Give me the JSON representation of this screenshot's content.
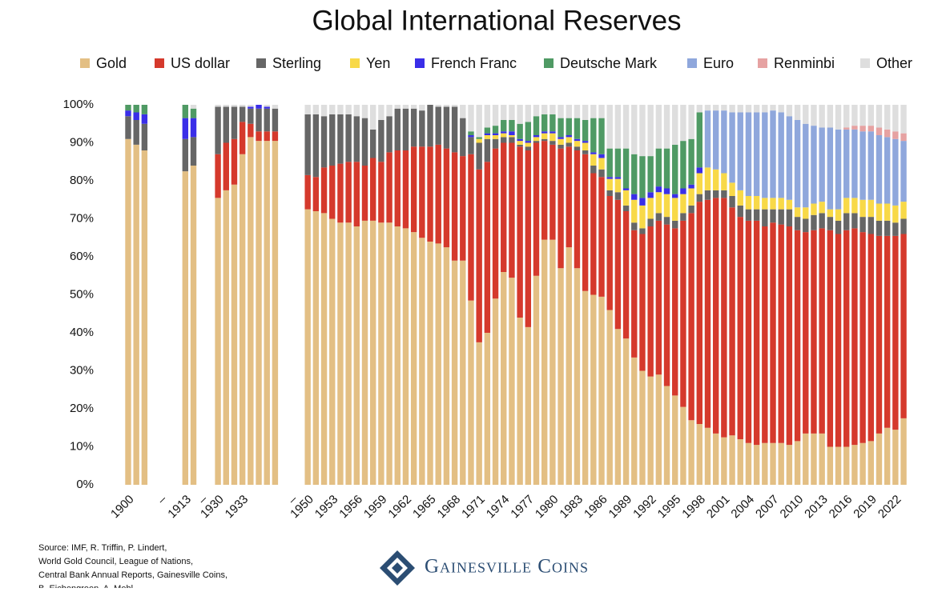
{
  "chart_data": {
    "type": "stacked_bar",
    "title": "Global International Reserves",
    "categories": [
      "1900",
      null,
      null,
      null,
      "–",
      null,
      null,
      "1913",
      null,
      "–",
      null,
      "1930",
      null,
      null,
      "1933",
      null,
      null,
      null,
      null,
      null,
      "–",
      null,
      "1950",
      null,
      null,
      "1953",
      null,
      null,
      "1956",
      null,
      null,
      "1959",
      null,
      null,
      "1962",
      null,
      null,
      "1965",
      null,
      null,
      "1968",
      null,
      null,
      "1971",
      null,
      null,
      "1974",
      null,
      null,
      "1977",
      null,
      null,
      "1980",
      null,
      null,
      "1983",
      null,
      null,
      "1986",
      null,
      null,
      "1989",
      null,
      null,
      "1992",
      null,
      null,
      "1995",
      null,
      null,
      "1998",
      null,
      null,
      "2001",
      null,
      null,
      "2004",
      null,
      null,
      "2007",
      null,
      null,
      "2010",
      null,
      null,
      "2013",
      null,
      null,
      "2016",
      null,
      null,
      "2019",
      null,
      null,
      "2022",
      null
    ],
    "series": [
      {
        "name": "Gold",
        "color": "#e3bf84",
        "values": [
          91,
          89.5,
          88,
          null,
          null,
          null,
          null,
          82.5,
          84,
          null,
          null,
          75.5,
          77.5,
          79,
          87,
          91.5,
          90.5,
          90.5,
          90.5,
          null,
          null,
          null,
          72.5,
          72,
          71.5,
          70,
          69,
          69,
          68,
          69.5,
          69.5,
          69,
          69,
          68,
          67.5,
          66.5,
          65,
          64,
          63.5,
          62.5,
          59,
          59,
          48.5,
          37.5,
          40,
          49,
          56,
          54.5,
          44,
          41.5,
          55,
          64.5,
          64.5,
          57,
          62.5,
          57,
          51,
          50,
          49.5,
          46,
          41,
          38.5,
          33.5,
          30,
          28.5,
          29,
          26,
          23.5,
          20.5,
          17,
          16,
          15,
          13.5,
          12.5,
          13,
          12,
          11,
          10.5,
          11,
          11,
          11,
          10.5,
          11.5,
          13.5,
          13.5,
          13.5,
          10,
          10,
          10,
          10.5,
          11,
          11.5,
          13.5,
          15,
          14.5,
          17.5
        ]
      },
      {
        "name": "US dollar",
        "color": "#d5392c",
        "values": [
          0,
          0,
          0,
          null,
          null,
          null,
          null,
          0,
          0,
          null,
          null,
          11.5,
          12.5,
          12,
          8.5,
          3.5,
          2.5,
          2.5,
          2.5,
          null,
          null,
          null,
          9,
          9,
          12,
          14,
          15.5,
          16,
          17,
          14.5,
          16.5,
          16,
          18.5,
          20,
          20.5,
          22.5,
          24,
          25,
          26,
          26,
          28.5,
          27.5,
          38.5,
          45.5,
          45,
          39.5,
          34,
          35.5,
          45,
          46.5,
          35,
          26,
          25,
          31.5,
          26.5,
          31,
          36,
          32,
          31.5,
          30,
          34,
          33.5,
          33.5,
          36,
          39.5,
          40.5,
          42.5,
          44,
          49,
          54.5,
          58.5,
          60,
          62,
          63,
          60,
          58.5,
          58.5,
          59,
          57,
          58,
          57.5,
          57.5,
          55.5,
          53,
          53.5,
          54,
          57,
          56,
          57,
          57,
          55.5,
          54.5,
          52,
          50.5,
          51,
          48.5
        ]
      },
      {
        "name": "Sterling",
        "color": "#666666",
        "values": [
          6,
          6.5,
          7,
          null,
          null,
          null,
          null,
          8.5,
          7.5,
          null,
          null,
          12.5,
          9.5,
          8.5,
          4,
          4,
          6,
          6,
          6,
          null,
          null,
          null,
          16,
          16.5,
          13.5,
          13.5,
          13,
          12.5,
          12,
          12.5,
          7.5,
          11,
          9.5,
          11,
          11,
          10,
          9.5,
          11,
          10,
          11,
          12,
          10,
          4.5,
          7,
          6,
          2.5,
          1.5,
          1.5,
          0.5,
          1,
          0.5,
          0.5,
          1,
          1,
          1,
          1,
          1,
          2,
          2,
          1.5,
          2,
          1.5,
          2,
          1.5,
          2,
          2,
          2,
          2,
          2,
          2,
          2,
          2.5,
          2,
          2,
          3,
          3,
          3,
          3,
          4.5,
          3.5,
          4,
          4.5,
          3.5,
          3.5,
          4,
          4,
          3.5,
          3.5,
          4.5,
          4,
          4,
          4.5,
          4,
          4,
          3.5,
          4
        ]
      },
      {
        "name": "Yen",
        "color": "#f8d948",
        "values": [
          0,
          0,
          0,
          null,
          null,
          null,
          null,
          0,
          0,
          null,
          null,
          0,
          0,
          0,
          0,
          0,
          0,
          0,
          0,
          null,
          null,
          null,
          0,
          0,
          0,
          0,
          0,
          0,
          0,
          0,
          0,
          0,
          0,
          0,
          0,
          0,
          0,
          0,
          0,
          0,
          0,
          0,
          0,
          1,
          1,
          1,
          1,
          0.5,
          1,
          1,
          1,
          1.5,
          2,
          1.5,
          1.5,
          1.5,
          2,
          3,
          3,
          3,
          3.5,
          4,
          6,
          6,
          5.5,
          5.5,
          6,
          6,
          5,
          4.5,
          5.5,
          6,
          5.5,
          4.5,
          3.5,
          4,
          3.5,
          3.5,
          3,
          3,
          3,
          2.5,
          2.5,
          3,
          3,
          3,
          2,
          3,
          4,
          4,
          4.5,
          4.5,
          4.5,
          4.5,
          4.5,
          4.5
        ]
      },
      {
        "name": "French Franc",
        "color": "#3a2ee8",
        "values": [
          1.5,
          2,
          2.5,
          null,
          null,
          null,
          null,
          5.5,
          5,
          null,
          null,
          0,
          0,
          0,
          0,
          0.5,
          1,
          0.5,
          0,
          null,
          null,
          null,
          0,
          0,
          0,
          0,
          0,
          0,
          0,
          0,
          0,
          0,
          0,
          0,
          0,
          0,
          0,
          0,
          0,
          0,
          0,
          0,
          0.5,
          0,
          0.5,
          0.5,
          0.5,
          1,
          0.5,
          0.5,
          0.5,
          0.5,
          0.5,
          0.5,
          0.5,
          0.5,
          0.5,
          0.5,
          1,
          0.5,
          0.5,
          0.5,
          1.5,
          2,
          1.5,
          1.5,
          1.5,
          1,
          1.5,
          1,
          1.5,
          0,
          0,
          0,
          0,
          0,
          0,
          0,
          0,
          0,
          0,
          0,
          0,
          0,
          0,
          0,
          0,
          0,
          0,
          0,
          0,
          0,
          0,
          0,
          0,
          0
        ]
      },
      {
        "name": "Deutsche Mark",
        "color": "#4f9a64",
        "values": [
          1.5,
          2,
          2.5,
          null,
          null,
          null,
          null,
          3.5,
          2.5,
          null,
          null,
          0,
          0,
          0,
          0,
          0,
          0,
          0,
          0,
          null,
          null,
          null,
          0,
          0,
          0,
          0,
          0,
          0,
          0,
          0,
          0,
          0,
          0,
          0,
          0,
          0,
          0,
          0,
          0,
          0,
          0,
          0,
          1,
          0.5,
          1.5,
          2,
          3,
          3,
          4,
          5,
          5,
          4.5,
          4.5,
          5,
          4.5,
          5.5,
          5.5,
          9,
          9.5,
          7.5,
          7.5,
          10.5,
          10.5,
          11,
          9.5,
          10,
          10.5,
          13,
          12.5,
          12,
          14.5,
          0,
          0,
          0,
          0,
          0,
          0,
          0,
          0,
          0,
          0,
          0,
          0,
          0,
          0,
          0,
          0,
          0,
          0,
          0,
          0,
          0,
          0,
          0,
          0,
          0
        ]
      },
      {
        "name": "Euro",
        "color": "#8fa7dc",
        "values": [
          0,
          0,
          0,
          null,
          null,
          null,
          null,
          0,
          0,
          null,
          null,
          0,
          0,
          0,
          0,
          0,
          0,
          0,
          0,
          null,
          null,
          null,
          0,
          0,
          0,
          0,
          0,
          0,
          0,
          0,
          0,
          0,
          0,
          0,
          0,
          0,
          0,
          0,
          0,
          0,
          0,
          0,
          0,
          0,
          0,
          0,
          0,
          0,
          0,
          0,
          0,
          0,
          0,
          0,
          0,
          0,
          0,
          0,
          0,
          0,
          0,
          0,
          0,
          0,
          0,
          0,
          0,
          0,
          0,
          0,
          0,
          15,
          15.5,
          16.5,
          18.5,
          20.5,
          22,
          22,
          22.5,
          23,
          22.5,
          22,
          23,
          22,
          20.5,
          19.5,
          21.5,
          21,
          18,
          18,
          18,
          18,
          18,
          17.5,
          17.5,
          16
        ]
      },
      {
        "name": "Renminbi",
        "color": "#e6a2a2",
        "values": [
          0,
          0,
          0,
          null,
          null,
          null,
          null,
          0,
          0,
          null,
          null,
          0,
          0,
          0,
          0,
          0,
          0,
          0,
          0,
          null,
          null,
          null,
          0,
          0,
          0,
          0,
          0,
          0,
          0,
          0,
          0,
          0,
          0,
          0,
          0,
          0,
          0,
          0,
          0,
          0,
          0,
          0,
          0,
          0,
          0,
          0,
          0,
          0,
          0,
          0,
          0,
          0,
          0,
          0,
          0,
          0,
          0,
          0,
          0,
          0,
          0,
          0,
          0,
          0,
          0,
          0,
          0,
          0,
          0,
          0,
          0,
          0,
          0,
          0,
          0,
          0,
          0,
          0,
          0,
          0,
          0,
          0,
          0,
          0,
          0,
          0,
          0,
          0,
          0.5,
          1,
          1.5,
          1.5,
          2,
          2,
          2,
          2
        ]
      },
      {
        "name": "Other",
        "color": "#dedede",
        "values": [
          0,
          0,
          0,
          null,
          null,
          null,
          null,
          0,
          1,
          null,
          null,
          0.5,
          0.5,
          0.5,
          0.5,
          0.5,
          0,
          0.5,
          1,
          null,
          null,
          null,
          2.5,
          2.5,
          3,
          2.5,
          2.5,
          2.5,
          3,
          3.5,
          6.5,
          4,
          3,
          1,
          1,
          1,
          1.5,
          0,
          0.5,
          0.5,
          0.5,
          3.5,
          7,
          8.5,
          6,
          5.5,
          4,
          4,
          5,
          4.5,
          3,
          2.5,
          2.5,
          3.5,
          3.5,
          3.5,
          4,
          3.5,
          3.5,
          11.5,
          11.5,
          11.5,
          13,
          13.5,
          13.5,
          11.5,
          11.5,
          10.5,
          9.5,
          9,
          2,
          1.5,
          1.5,
          1.5,
          2,
          2,
          2,
          2,
          2,
          1.5,
          2,
          3,
          4,
          5,
          5.5,
          6,
          6,
          6.5,
          6,
          5.5,
          5.5,
          5.5,
          6,
          6.5,
          7,
          7.5
        ]
      }
    ],
    "ylim": [
      0,
      100
    ],
    "yticks": [
      {
        "value": 0,
        "label": "0%"
      },
      {
        "value": 10,
        "label": "10%"
      },
      {
        "value": 20,
        "label": "20%"
      },
      {
        "value": 30,
        "label": "30%"
      },
      {
        "value": 40,
        "label": "40%"
      },
      {
        "value": 50,
        "label": "50%"
      },
      {
        "value": 60,
        "label": "60%"
      },
      {
        "value": 70,
        "label": "70%"
      },
      {
        "value": 80,
        "label": "80%"
      },
      {
        "value": 90,
        "label": "90%"
      },
      {
        "value": 100,
        "label": "100%"
      }
    ],
    "legend": "top",
    "source": [
      "Source: IMF, R. Triffin, P. Lindert,",
      "World Gold Council, League of Nations,",
      "Central Bank Annual Reports, Gainesville Coins,",
      "B. Eichengreen, A. Mehl"
    ],
    "brand": "Gainesville Coins"
  }
}
